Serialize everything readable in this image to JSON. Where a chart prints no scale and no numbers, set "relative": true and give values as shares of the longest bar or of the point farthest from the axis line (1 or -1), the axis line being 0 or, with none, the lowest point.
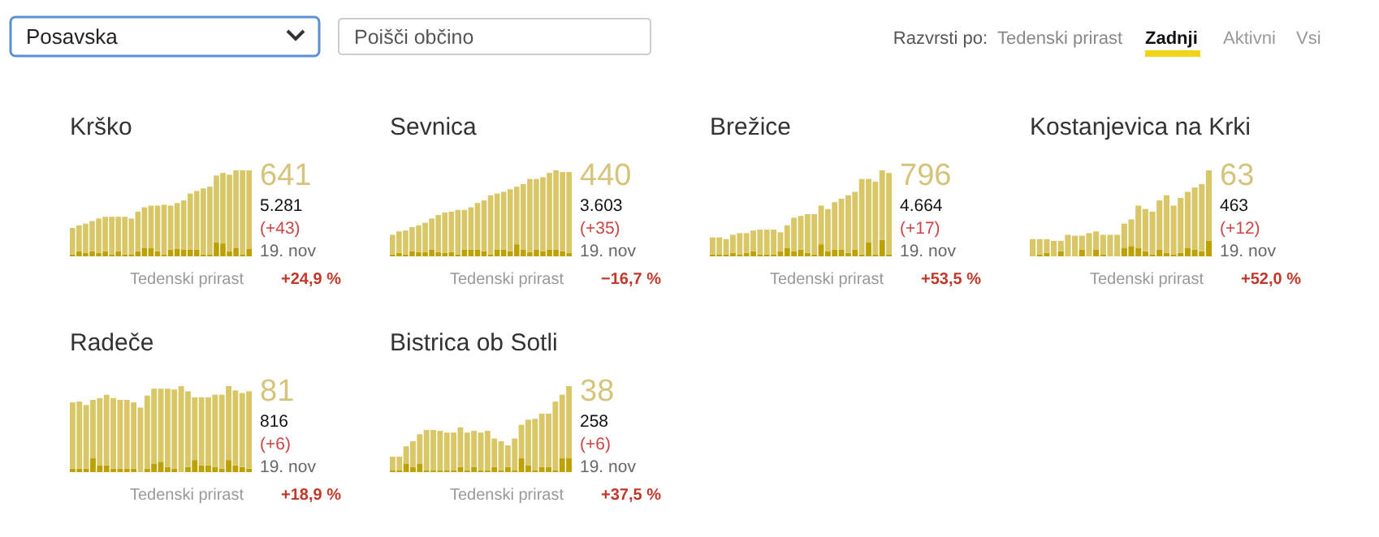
{
  "chart_data": [
    {
      "type": "other",
      "annotations": [
        "Posavska",
        "Poišči občino",
        "Razvrsti po:",
        "Tedenski prirast",
        "Zadnji",
        "Aktivni",
        "Vsi"
      ]
    },
    {
      "type": "bar",
      "title": "Krško",
      "relative": true,
      "stacked": true,
      "categories": [
        null,
        null,
        null,
        null,
        null,
        null,
        null,
        null,
        null,
        null,
        null,
        null,
        null,
        null,
        null,
        null,
        null,
        null,
        null,
        null,
        null,
        null,
        null,
        null,
        null,
        null,
        null,
        null
      ],
      "series": [
        {
          "color": "#bca100",
          "values": [
            0.02,
            0.06,
            0.04,
            0.06,
            0.04,
            0.06,
            0.02,
            0.06,
            0.02,
            0.02,
            0.06,
            0.1,
            0.1,
            0.06,
            0.02,
            0.08,
            0.09,
            0.08,
            0.08,
            0.08,
            0.02,
            0.02,
            0.16,
            0.15,
            0.06,
            0.1,
            0.02,
            0.09
          ]
        },
        {
          "color": "#d8c667",
          "values": [
            0.31,
            0.3,
            0.34,
            0.35,
            0.4,
            0.4,
            0.44,
            0.4,
            0.44,
            0.42,
            0.46,
            0.47,
            0.49,
            0.53,
            0.58,
            0.51,
            0.53,
            0.57,
            0.65,
            0.68,
            0.77,
            0.79,
            0.78,
            0.82,
            0.89,
            0.9,
            0.98,
            0.91
          ]
        }
      ],
      "annotations": [
        "641",
        "5.281",
        "(+43)",
        "19. nov",
        "Tedenski prirast",
        "+24,9 %"
      ]
    },
    {
      "type": "bar",
      "title": "Sevnica",
      "relative": true,
      "stacked": true,
      "categories": [
        null,
        null,
        null,
        null,
        null,
        null,
        null,
        null,
        null,
        null,
        null,
        null,
        null,
        null,
        null,
        null,
        null,
        null,
        null,
        null,
        null,
        null,
        null,
        null,
        null,
        null,
        null,
        null
      ],
      "series": [
        {
          "color": "#bca100",
          "values": [
            0.02,
            0.04,
            0.02,
            0.06,
            0.05,
            0.05,
            0.08,
            0.05,
            0.04,
            0.05,
            0.02,
            0.08,
            0.08,
            0.08,
            0.06,
            0.02,
            0.08,
            0.08,
            0.06,
            0.14,
            0.08,
            0.05,
            0.08,
            0.06,
            0.08,
            0.08,
            0.06,
            0.04
          ]
        },
        {
          "color": "#d8c667",
          "values": [
            0.23,
            0.25,
            0.28,
            0.28,
            0.31,
            0.34,
            0.36,
            0.43,
            0.47,
            0.47,
            0.52,
            0.46,
            0.49,
            0.54,
            0.59,
            0.69,
            0.65,
            0.67,
            0.72,
            0.67,
            0.76,
            0.85,
            0.82,
            0.86,
            0.89,
            0.92,
            0.92,
            0.94
          ]
        }
      ],
      "annotations": [
        "440",
        "3.603",
        "(+35)",
        "19. nov",
        "Tedenski prirast",
        "−16,7 %"
      ]
    },
    {
      "type": "bar",
      "title": "Brežice",
      "relative": true,
      "stacked": true,
      "categories": [
        null,
        null,
        null,
        null,
        null,
        null,
        null,
        null,
        null,
        null,
        null,
        null,
        null,
        null,
        null,
        null,
        null,
        null,
        null,
        null,
        null,
        null,
        null,
        null,
        null,
        null,
        null
      ],
      "series": [
        {
          "color": "#bca100",
          "values": [
            0.02,
            0.02,
            0.02,
            0.04,
            0.02,
            0.04,
            0.06,
            0.02,
            0.02,
            0.02,
            0.06,
            0.1,
            0.06,
            0.08,
            0.04,
            0.02,
            0.14,
            0.06,
            0.08,
            0.08,
            0.04,
            0.08,
            0.02,
            0.16,
            0.02,
            0.19,
            0.02
          ]
        },
        {
          "color": "#d8c667",
          "values": [
            0.2,
            0.2,
            0.18,
            0.21,
            0.25,
            0.23,
            0.24,
            0.29,
            0.29,
            0.29,
            0.22,
            0.26,
            0.39,
            0.39,
            0.45,
            0.47,
            0.45,
            0.49,
            0.55,
            0.59,
            0.67,
            0.67,
            0.88,
            0.74,
            0.85,
            0.81,
            0.95
          ]
        }
      ],
      "annotations": [
        "796",
        "4.664",
        "(+17)",
        "19. nov",
        "Tedenski prirast",
        "+53,5 %"
      ]
    },
    {
      "type": "bar",
      "title": "Kostanjevica na Krki",
      "relative": true,
      "stacked": true,
      "categories": [
        null,
        null,
        null,
        null,
        null,
        null,
        null,
        null,
        null,
        null,
        null,
        null,
        null,
        null,
        null,
        null,
        null,
        null,
        null,
        null,
        null,
        null,
        null,
        null,
        null,
        null
      ],
      "series": [
        {
          "color": "#bca100",
          "values": [
            0,
            0.02,
            0.04,
            0,
            0.06,
            0,
            0,
            0.08,
            0,
            0.08,
            0.02,
            0,
            0,
            0.1,
            0.12,
            0.1,
            0.06,
            0.02,
            0.08,
            0.04,
            0.02,
            0.04,
            0.1,
            0.08,
            0.06,
            0.18
          ]
        },
        {
          "color": "#d8c667",
          "values": [
            0.2,
            0.18,
            0.16,
            0.18,
            0.12,
            0.25,
            0.24,
            0.16,
            0.27,
            0.21,
            0.23,
            0.25,
            0.25,
            0.28,
            0.31,
            0.49,
            0.49,
            0.5,
            0.57,
            0.67,
            0.57,
            0.64,
            0.65,
            0.72,
            0.78,
            0.82
          ]
        }
      ],
      "annotations": [
        "63",
        "463",
        "(+12)",
        "19. nov",
        "Tedenski prirast",
        "+52,0 %"
      ]
    },
    {
      "type": "bar",
      "title": "Radeče",
      "relative": true,
      "stacked": true,
      "categories": [
        null,
        null,
        null,
        null,
        null,
        null,
        null,
        null,
        null,
        null,
        null,
        null,
        null,
        null,
        null,
        null,
        null,
        null,
        null,
        null,
        null,
        null,
        null,
        null,
        null,
        null,
        null
      ],
      "series": [
        {
          "color": "#bca100",
          "values": [
            0.04,
            0.04,
            0.04,
            0.16,
            0.08,
            0.08,
            0.04,
            0.04,
            0.04,
            0.04,
            0,
            0.04,
            0.1,
            0.12,
            0.06,
            0.04,
            0,
            0.06,
            0.14,
            0.08,
            0.08,
            0.06,
            0.04,
            0.14,
            0.08,
            0.06,
            0.04
          ]
        },
        {
          "color": "#d8c667",
          "values": [
            0.77,
            0.78,
            0.74,
            0.68,
            0.78,
            0.82,
            0.82,
            0.8,
            0.8,
            0.77,
            0.75,
            0.85,
            0.87,
            0.85,
            0.91,
            0.92,
            1,
            0.88,
            0.73,
            0.79,
            0.79,
            0.84,
            0.86,
            0.86,
            0.87,
            0.86,
            0.9
          ]
        }
      ],
      "annotations": [
        "81",
        "816",
        "(+6)",
        "19. nov",
        "Tedenski prirast",
        "+18,9 %"
      ]
    },
    {
      "type": "bar",
      "title": "Bistrica ob Sotli",
      "relative": true,
      "stacked": true,
      "categories": [
        null,
        null,
        null,
        null,
        null,
        null,
        null,
        null,
        null,
        null,
        null,
        null,
        null,
        null,
        null,
        null,
        null,
        null,
        null,
        null,
        null,
        null,
        null,
        null,
        null,
        null,
        null
      ],
      "series": [
        {
          "color": "#bca100",
          "values": [
            0.02,
            0.02,
            0.1,
            0.06,
            0.1,
            0.02,
            0.02,
            0.02,
            0.02,
            0.02,
            0.06,
            0.02,
            0.06,
            0.02,
            0.02,
            0.06,
            0.02,
            0.06,
            0.02,
            0.16,
            0.08,
            0.02,
            0.06,
            0.06,
            0.02,
            0.16,
            0.16
          ]
        },
        {
          "color": "#d8c667",
          "values": [
            0.16,
            0.16,
            0.2,
            0.3,
            0.34,
            0.47,
            0.47,
            0.46,
            0.44,
            0.44,
            0.46,
            0.44,
            0.42,
            0.44,
            0.46,
            0.33,
            0.34,
            0.25,
            0.37,
            0.39,
            0.53,
            0.6,
            0.62,
            0.62,
            0.8,
            0.74,
            0.84
          ]
        }
      ],
      "annotations": [
        "38",
        "258",
        "(+6)",
        "19. nov",
        "Tedenski prirast",
        "+37,5 %"
      ]
    }
  ]
}
